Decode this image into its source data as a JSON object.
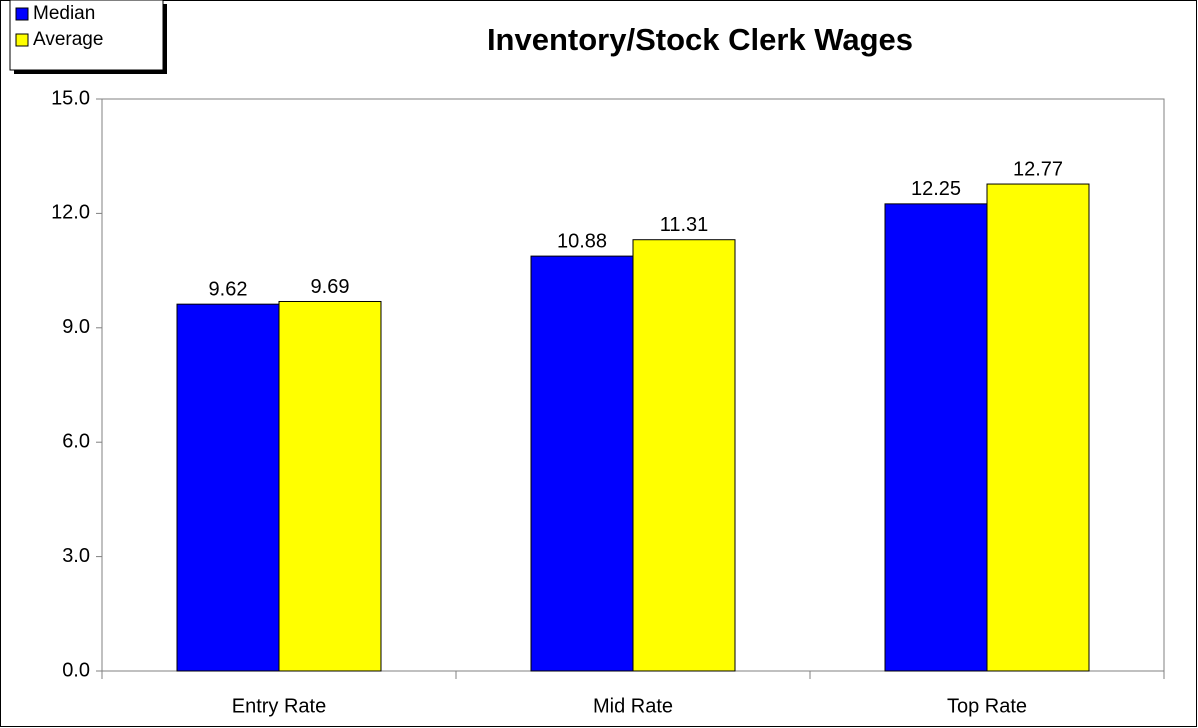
{
  "chart_data": {
    "type": "bar",
    "title": "Inventory/Stock Clerk Wages",
    "categories": [
      "Entry Rate",
      "Mid Rate",
      "Top Rate"
    ],
    "series": [
      {
        "name": "Median",
        "color": "#0000ff",
        "values": [
          9.62,
          10.88,
          12.25
        ]
      },
      {
        "name": "Average",
        "color": "#ffff00",
        "values": [
          9.69,
          11.31,
          12.77
        ]
      }
    ],
    "ylim": [
      0,
      15
    ],
    "yticks": [
      {
        "value": 0,
        "label": "0.0"
      },
      {
        "value": 3,
        "label": "3.0"
      },
      {
        "value": 6,
        "label": "6.0"
      },
      {
        "value": 9,
        "label": "9.0"
      },
      {
        "value": 12,
        "label": "12.0"
      },
      {
        "value": 15,
        "label": "15.0"
      }
    ],
    "legend": "top-left",
    "grid": false
  }
}
